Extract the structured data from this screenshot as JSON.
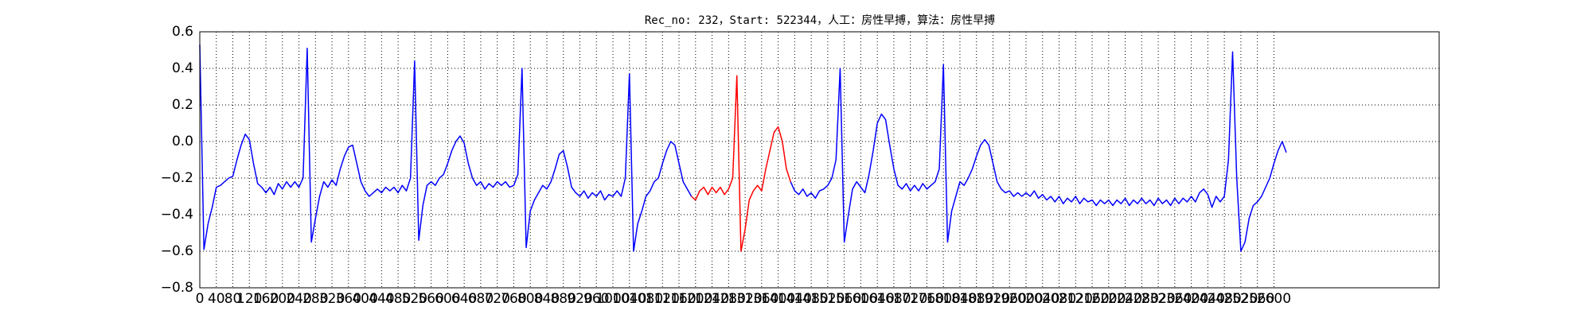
{
  "chart_data": {
    "type": "line",
    "title": "Rec_no: 232，Start: 522344，人工：房性早搏，算法：房性早搏",
    "x": [
      0,
      10,
      20,
      30,
      40,
      50,
      60,
      70,
      80,
      90,
      100,
      110,
      120,
      130,
      140,
      150,
      160,
      170,
      180,
      190,
      200,
      210,
      220,
      230,
      240,
      250,
      260,
      270,
      280,
      290,
      300,
      310,
      320,
      330,
      340,
      350,
      360,
      370,
      380,
      390,
      400,
      410,
      420,
      430,
      440,
      450,
      460,
      470,
      480,
      490,
      500,
      510,
      520,
      530,
      540,
      550,
      560,
      570,
      580,
      590,
      600,
      610,
      620,
      630,
      640,
      650,
      660,
      670,
      680,
      690,
      700,
      710,
      720,
      730,
      740,
      750,
      760,
      770,
      780,
      790,
      800,
      810,
      820,
      830,
      840,
      850,
      860,
      870,
      880,
      890,
      900,
      910,
      920,
      930,
      940,
      950,
      960,
      970,
      980,
      990,
      1000,
      1010,
      1020,
      1030,
      1040,
      1050,
      1060,
      1070,
      1080,
      1090,
      1100,
      1110,
      1120,
      1130,
      1140,
      1150,
      1160,
      1170,
      1180,
      1190,
      1200,
      1210,
      1220,
      1230,
      1240,
      1250,
      1260,
      1270,
      1280,
      1290,
      1300,
      1310,
      1320,
      1330,
      1340,
      1350,
      1360,
      1370,
      1380,
      1390,
      1400,
      1410,
      1420,
      1430,
      1440,
      1450,
      1460,
      1470,
      1480,
      1490,
      1500,
      1510,
      1520,
      1530,
      1540,
      1550,
      1560,
      1570,
      1580,
      1590,
      1600,
      1610,
      1620,
      1630,
      1640,
      1650,
      1660,
      1670,
      1680,
      1690,
      1700,
      1710,
      1720,
      1730,
      1740,
      1750,
      1760,
      1770,
      1780,
      1790,
      1800,
      1810,
      1820,
      1830,
      1840,
      1850,
      1860,
      1870,
      1880,
      1890,
      1900,
      1910,
      1920,
      1930,
      1940,
      1950,
      1960,
      1970,
      1980,
      1990,
      2000,
      2010,
      2020,
      2030,
      2040,
      2050,
      2060,
      2070,
      2080,
      2090,
      2100,
      2110,
      2120,
      2130,
      2140,
      2150,
      2160,
      2170,
      2180,
      2190,
      2200,
      2210,
      2220,
      2230,
      2240,
      2250,
      2260,
      2270,
      2280,
      2290,
      2300,
      2310,
      2320,
      2330,
      2340,
      2350,
      2360,
      2370,
      2380,
      2390,
      2400,
      2410,
      2420,
      2430,
      2440,
      2450,
      2460,
      2470,
      2480,
      2490,
      2500,
      2510,
      2520,
      2530,
      2540,
      2550,
      2560,
      2570,
      2580,
      2590,
      2600,
      2610,
      2620,
      2630
    ],
    "series": [
      {
        "color": "#0000ff",
        "values": [
          0.53,
          -0.59,
          -0.45,
          -0.36,
          -0.25,
          -0.24,
          -0.22,
          -0.2,
          -0.19,
          -0.1,
          -0.02,
          0.04,
          0.01,
          -0.12,
          -0.23,
          -0.25,
          -0.28,
          -0.25,
          -0.29,
          -0.23,
          -0.26,
          -0.22,
          -0.25,
          -0.22,
          -0.25,
          -0.2,
          0.51,
          -0.55,
          -0.42,
          -0.3,
          -0.22,
          -0.25,
          -0.21,
          -0.24,
          -0.15,
          -0.08,
          -0.03,
          -0.02,
          -0.12,
          -0.22,
          -0.27,
          -0.3,
          -0.28,
          -0.26,
          -0.28,
          -0.25,
          -0.27,
          -0.25,
          -0.28,
          -0.24,
          -0.27,
          -0.2,
          0.44,
          -0.54,
          -0.35,
          -0.24,
          -0.22,
          -0.24,
          -0.2,
          -0.18,
          -0.12,
          -0.05,
          0.0,
          0.03,
          -0.01,
          -0.12,
          -0.2,
          -0.24,
          -0.22,
          -0.26,
          -0.23,
          -0.25,
          -0.22,
          -0.24,
          -0.22,
          -0.25,
          -0.24,
          -0.18,
          0.4,
          -0.58,
          -0.38,
          -0.32,
          -0.28,
          -0.24,
          -0.26,
          -0.22,
          -0.15,
          -0.07,
          -0.05,
          -0.14,
          -0.25,
          -0.28,
          -0.3,
          -0.27,
          -0.31,
          -0.28,
          -0.3,
          -0.27,
          -0.32,
          -0.29,
          -0.3,
          -0.27,
          -0.3,
          -0.2,
          0.37,
          -0.6,
          -0.45,
          -0.38,
          -0.3,
          -0.27,
          -0.22,
          -0.2,
          -0.12,
          -0.05,
          0.0,
          -0.02,
          -0.12,
          -0.22,
          -0.26,
          -0.3,
          null,
          null,
          null,
          null,
          null,
          null,
          null,
          null,
          null,
          null,
          null,
          null,
          null,
          null,
          null,
          null,
          null,
          null,
          null,
          null,
          null,
          null,
          null,
          -0.22,
          -0.27,
          -0.29,
          -0.26,
          -0.3,
          -0.28,
          -0.31,
          -0.27,
          -0.26,
          -0.24,
          -0.2,
          -0.1,
          0.4,
          -0.55,
          -0.4,
          -0.26,
          -0.22,
          -0.25,
          -0.28,
          -0.18,
          -0.05,
          0.1,
          0.15,
          0.12,
          -0.02,
          -0.15,
          -0.24,
          -0.26,
          -0.23,
          -0.27,
          -0.24,
          -0.27,
          -0.23,
          -0.26,
          -0.24,
          -0.22,
          -0.15,
          0.42,
          -0.55,
          -0.38,
          -0.3,
          -0.22,
          -0.24,
          -0.2,
          -0.15,
          -0.08,
          -0.02,
          0.01,
          -0.02,
          -0.12,
          -0.22,
          -0.26,
          -0.28,
          -0.27,
          -0.3,
          -0.28,
          -0.3,
          -0.28,
          -0.3,
          -0.27,
          -0.31,
          -0.29,
          -0.32,
          -0.3,
          -0.33,
          -0.3,
          -0.34,
          -0.31,
          -0.33,
          -0.3,
          -0.34,
          -0.31,
          -0.33,
          -0.32,
          -0.35,
          -0.32,
          -0.34,
          -0.32,
          -0.35,
          -0.32,
          -0.34,
          -0.31,
          -0.35,
          -0.32,
          -0.34,
          -0.31,
          -0.34,
          -0.32,
          -0.35,
          -0.31,
          -0.34,
          -0.32,
          -0.35,
          -0.31,
          -0.34,
          -0.31,
          -0.33,
          -0.3,
          -0.33,
          -0.28,
          -0.26,
          -0.29,
          -0.36,
          -0.3,
          -0.33,
          -0.3,
          -0.1,
          0.49,
          -0.2,
          -0.6,
          -0.55,
          -0.42,
          -0.35,
          -0.33,
          -0.3,
          -0.25,
          -0.2,
          -0.12,
          -0.05,
          0.0,
          -0.06
        ]
      },
      {
        "color": "#ff0000",
        "values": [
          null,
          null,
          null,
          null,
          null,
          null,
          null,
          null,
          null,
          null,
          null,
          null,
          null,
          null,
          null,
          null,
          null,
          null,
          null,
          null,
          null,
          null,
          null,
          null,
          null,
          null,
          null,
          null,
          null,
          null,
          null,
          null,
          null,
          null,
          null,
          null,
          null,
          null,
          null,
          null,
          null,
          null,
          null,
          null,
          null,
          null,
          null,
          null,
          null,
          null,
          null,
          null,
          null,
          null,
          null,
          null,
          null,
          null,
          null,
          null,
          null,
          null,
          null,
          null,
          null,
          null,
          null,
          null,
          null,
          null,
          null,
          null,
          null,
          null,
          null,
          null,
          null,
          null,
          null,
          null,
          null,
          null,
          null,
          null,
          null,
          null,
          null,
          null,
          null,
          null,
          null,
          null,
          null,
          null,
          null,
          null,
          null,
          null,
          null,
          null,
          null,
          null,
          null,
          null,
          null,
          null,
          null,
          null,
          null,
          null,
          null,
          null,
          null,
          null,
          null,
          null,
          null,
          null,
          null,
          -0.3,
          -0.32,
          -0.27,
          -0.25,
          -0.29,
          -0.25,
          -0.28,
          -0.25,
          -0.29,
          -0.26,
          -0.2,
          0.36,
          -0.6,
          -0.48,
          -0.32,
          -0.27,
          -0.24,
          -0.27,
          -0.15,
          -0.05,
          0.05,
          0.08,
          0.0,
          -0.15,
          -0.22,
          null,
          null,
          null,
          null,
          null,
          null,
          null,
          null,
          null,
          null,
          null,
          null,
          null,
          null,
          null,
          null,
          null,
          null,
          null,
          null,
          null,
          null,
          null,
          null,
          null,
          null,
          null,
          null,
          null,
          null,
          null,
          null,
          null,
          null,
          null,
          null,
          null,
          null,
          null,
          null,
          null,
          null,
          null,
          null,
          null,
          null,
          null,
          null,
          null,
          null,
          null,
          null,
          null,
          null,
          null,
          null,
          null,
          null,
          null,
          null,
          null,
          null,
          null,
          null,
          null,
          null,
          null,
          null,
          null,
          null,
          null,
          null,
          null,
          null,
          null,
          null,
          null,
          null,
          null,
          null,
          null,
          null,
          null,
          null,
          null,
          null,
          null,
          null,
          null,
          null,
          null,
          null,
          null,
          null,
          null,
          null,
          null,
          null,
          null,
          null,
          null,
          null,
          null,
          null,
          null,
          null,
          null,
          null,
          null,
          null,
          null,
          null,
          null,
          null,
          null,
          null,
          null,
          null,
          null,
          null
        ]
      }
    ],
    "xlim": [
      0,
      3000
    ],
    "xticks": [
      0,
      40,
      80,
      120,
      160,
      200,
      240,
      280,
      320,
      360,
      400,
      440,
      480,
      520,
      560,
      600,
      640,
      680,
      720,
      760,
      800,
      840,
      880,
      920,
      960,
      1000,
      1040,
      1080,
      1120,
      1160,
      1200,
      1240,
      1280,
      1320,
      1360,
      1400,
      1440,
      1480,
      1520,
      1560,
      1600,
      1640,
      1680,
      1720,
      1760,
      1800,
      1840,
      1880,
      1920,
      1960,
      2000,
      2040,
      2080,
      2120,
      2160,
      2200,
      2240,
      2280,
      2320,
      2360,
      2400,
      2440,
      2480,
      2520,
      2560,
      2600
    ],
    "ylim": [
      -0.8,
      0.6
    ],
    "yticks": [
      {
        "value": -0.8,
        "label": "−0.8"
      },
      {
        "value": -0.6,
        "label": "−0.6"
      },
      {
        "value": -0.4,
        "label": "−0.4"
      },
      {
        "value": -0.2,
        "label": "−0.2"
      },
      {
        "value": 0.0,
        "label": "0.0"
      },
      0.2,
      0.4,
      0.6
    ],
    "grid": true
  }
}
